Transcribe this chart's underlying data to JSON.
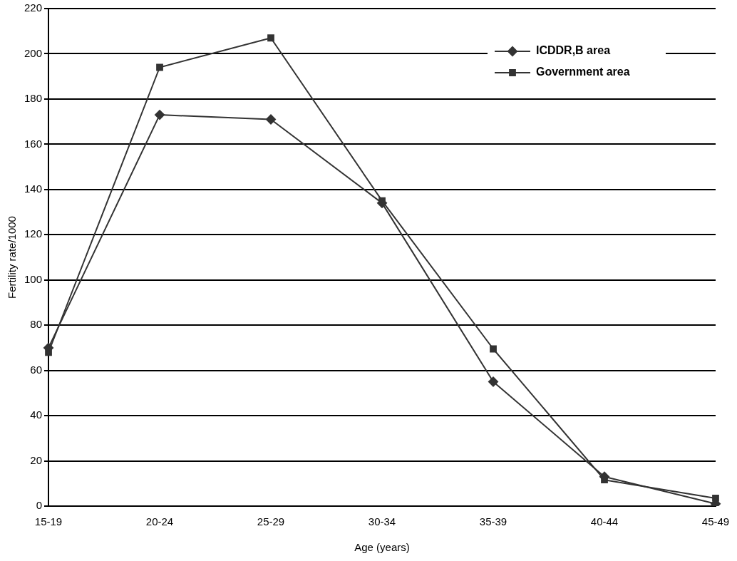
{
  "chart_data": {
    "type": "line",
    "xlabel": "Age (years)",
    "ylabel": "Fertility rate/1000",
    "categories": [
      "15-19",
      "20-24",
      "25-29",
      "30-34",
      "35-39",
      "40-44",
      "45-49"
    ],
    "series": [
      {
        "name": "ICDDR,B area",
        "color": "#333333",
        "marker": "diamond",
        "values": [
          70,
          173,
          171,
          134,
          55,
          13,
          1
        ]
      },
      {
        "name": "Government area",
        "color": "#333333",
        "marker": "square",
        "values": [
          68,
          194,
          207,
          135,
          69.5,
          11.6,
          3.5
        ]
      }
    ],
    "ylim": [
      0,
      220
    ],
    "yticks": [
      0,
      20,
      40,
      60,
      80,
      100,
      120,
      140,
      160,
      180,
      200,
      220
    ],
    "grid": "y",
    "legend": "top right",
    "line_style": "solid"
  }
}
